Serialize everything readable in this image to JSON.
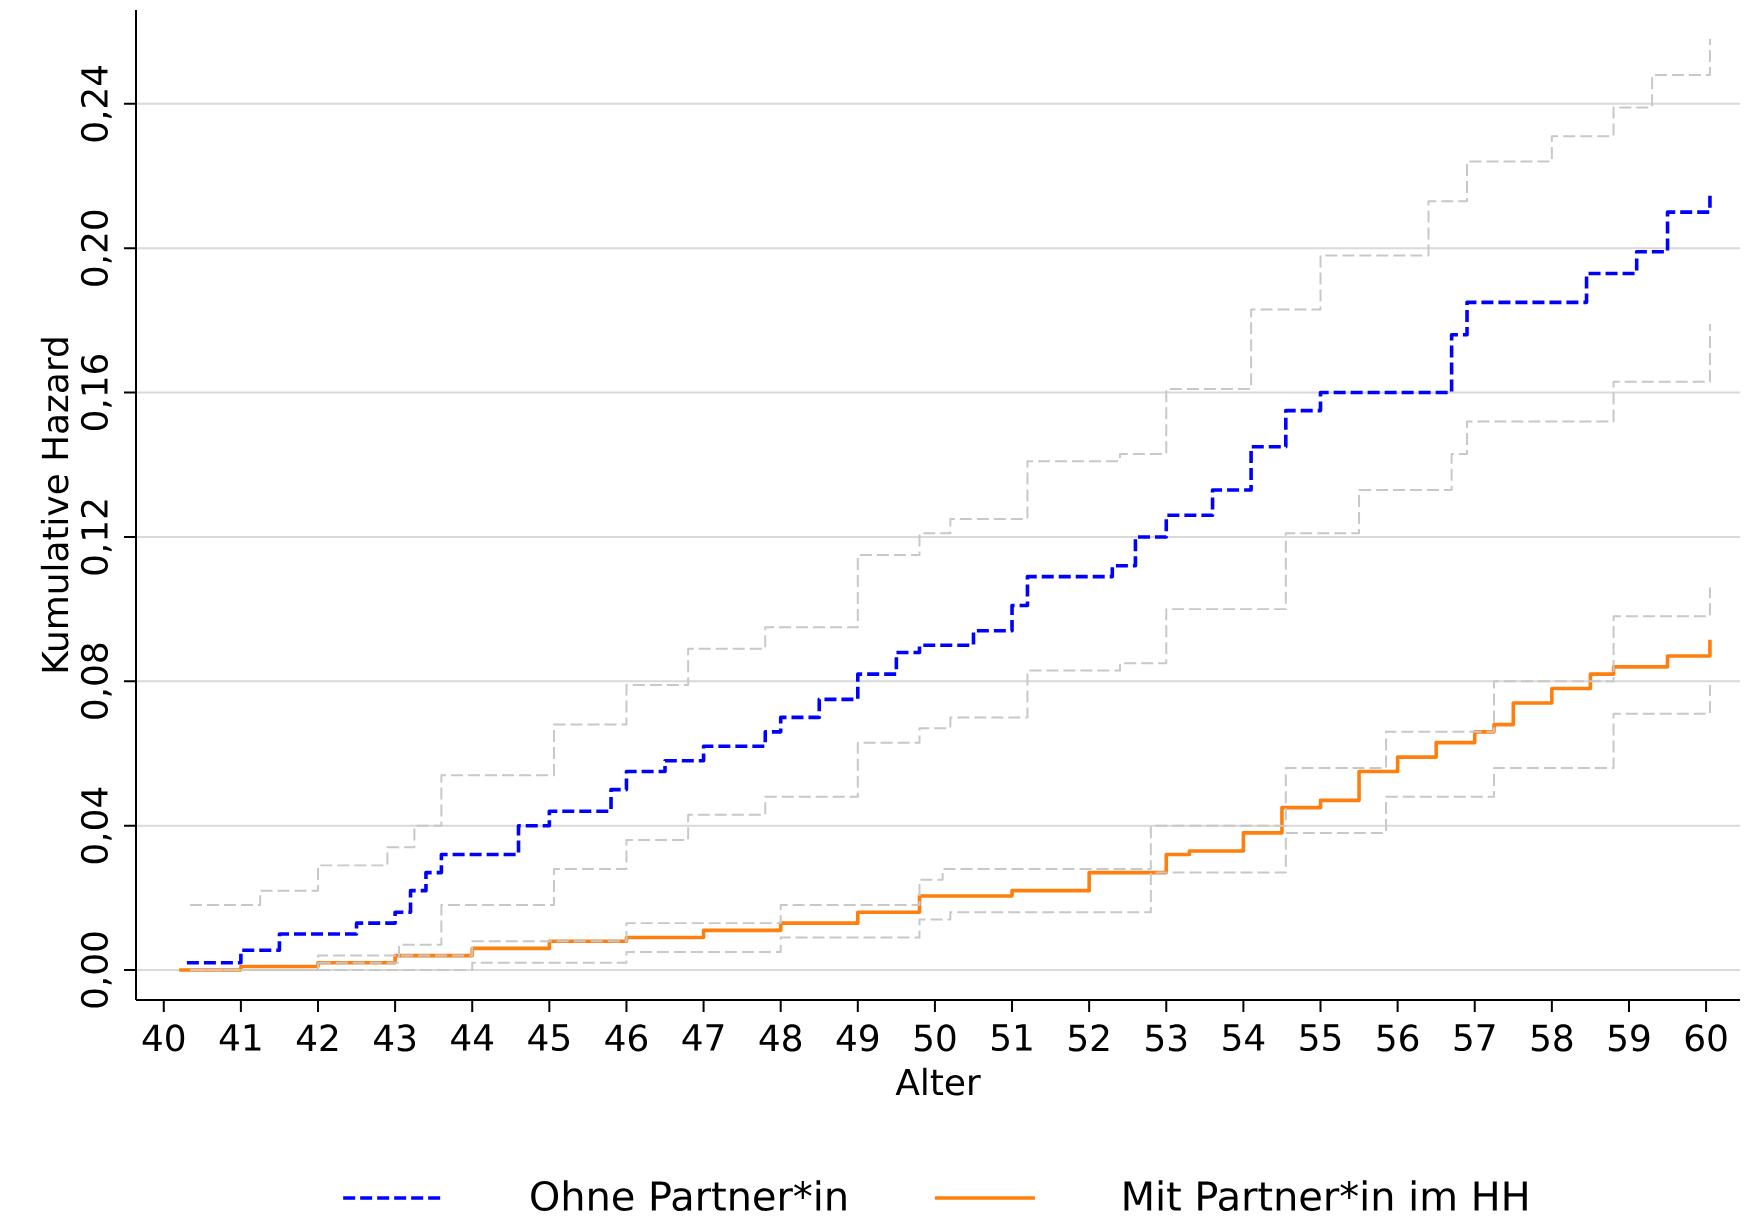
{
  "chart_data": {
    "type": "step",
    "xlabel": "Alter",
    "ylabel": "Kumulative Hazard",
    "xlim": [
      39.64,
      60.44
    ],
    "ylim": [
      -0.0083,
      0.266
    ],
    "xticks": [
      40,
      41,
      42,
      43,
      44,
      45,
      46,
      47,
      48,
      49,
      50,
      51,
      52,
      53,
      54,
      55,
      56,
      57,
      58,
      59,
      60
    ],
    "yticks": [
      {
        "value": 0,
        "label": "0,00"
      },
      {
        "value": 0.04,
        "label": "0,04"
      },
      {
        "value": 0.08,
        "label": "0,08"
      },
      {
        "value": 0.12,
        "label": "0,12"
      },
      {
        "value": 0.16,
        "label": "0,16"
      },
      {
        "value": 0.2,
        "label": "0,20"
      },
      {
        "value": 0.24,
        "label": "0,24"
      }
    ],
    "grid": "y",
    "legend": "bottom",
    "series": [
      {
        "color": "#c8c8c8",
        "line_style": "dashed",
        "x": [
          40.34,
          41.25,
          42.0,
          42.9,
          43.25,
          43.6,
          44.57,
          45.06,
          46.0,
          46.8,
          47.8,
          49.0,
          49.8,
          50.2,
          51.2,
          52.4,
          53.0,
          54.1,
          55.0,
          56.4,
          56.9,
          58.0,
          58.8,
          59.3,
          60.05
        ],
        "values": [
          0.018,
          0.022,
          0.029,
          0.034,
          0.04,
          0.054,
          0.054,
          0.068,
          0.079,
          0.089,
          0.095,
          0.115,
          0.121,
          0.125,
          0.141,
          0.143,
          0.161,
          0.183,
          0.198,
          0.213,
          0.224,
          0.231,
          0.239,
          0.248,
          0.258
        ]
      },
      {
        "color": "#c8c8c8",
        "line_style": "dashed",
        "x": [
          40.34,
          42.0,
          43.05,
          43.6,
          44.6,
          45.06,
          46.0,
          46.8,
          47.8,
          49.0,
          49.8,
          50.2,
          51.2,
          52.4,
          53.0,
          54.55,
          55.5,
          56.7,
          56.9,
          58.8,
          60.05
        ],
        "values": [
          0.0,
          0.002,
          0.007,
          0.018,
          0.018,
          0.028,
          0.036,
          0.043,
          0.048,
          0.063,
          0.067,
          0.07,
          0.083,
          0.085,
          0.1,
          0.121,
          0.133,
          0.143,
          0.152,
          0.163,
          0.179
        ]
      },
      {
        "color": "#c8c8c8",
        "line_style": "dashed",
        "x": [
          40.4,
          42.0,
          44.0,
          46.0,
          48.0,
          49.8,
          50.1,
          52.8,
          54.55,
          55.85,
          57.25,
          58.8,
          60.05
        ],
        "values": [
          0.0,
          0.004,
          0.008,
          0.013,
          0.018,
          0.025,
          0.028,
          0.04,
          0.056,
          0.066,
          0.08,
          0.098,
          0.106
        ]
      },
      {
        "color": "#c8c8c8",
        "line_style": "dashed",
        "x": [
          42.0,
          44.0,
          46.0,
          48.0,
          49.8,
          50.2,
          52.8,
          54.55,
          55.85,
          57.25,
          58.8,
          60.05
        ],
        "values": [
          0.0,
          0.002,
          0.005,
          0.009,
          0.014,
          0.016,
          0.027,
          0.038,
          0.048,
          0.056,
          0.071,
          0.079
        ]
      },
      {
        "name": "Ohne Partner*in",
        "color": "#0000ff",
        "line_style": "dashed",
        "x": [
          40.3,
          41.0,
          41.5,
          42.5,
          43.0,
          43.2,
          43.4,
          43.6,
          44.6,
          45.0,
          45.8,
          46.0,
          46.5,
          47.0,
          47.8,
          48.0,
          48.5,
          49.0,
          49.5,
          49.8,
          50.5,
          51.0,
          51.2,
          52.3,
          52.6,
          53.0,
          53.6,
          54.1,
          54.55,
          55.0,
          56.7,
          56.9,
          58.45,
          59.1,
          59.5,
          60.05
        ],
        "values": [
          0.002,
          0.0055,
          0.01,
          0.013,
          0.016,
          0.022,
          0.027,
          0.032,
          0.04,
          0.044,
          0.05,
          0.055,
          0.058,
          0.062,
          0.066,
          0.07,
          0.075,
          0.082,
          0.088,
          0.09,
          0.094,
          0.101,
          0.109,
          0.112,
          0.12,
          0.126,
          0.133,
          0.145,
          0.155,
          0.16,
          0.176,
          0.185,
          0.193,
          0.199,
          0.21,
          0.2145
        ]
      },
      {
        "name": "Mit Partner*in im HH",
        "color": "#ff7f0e",
        "line_style": "solid",
        "x": [
          40.2,
          41.0,
          42.0,
          43.0,
          44.0,
          45.0,
          46.0,
          47.0,
          48.0,
          49.0,
          49.8,
          51.0,
          52.0,
          53.0,
          53.3,
          54.0,
          54.5,
          55.0,
          55.5,
          56.0,
          56.5,
          57.0,
          57.25,
          57.5,
          58.0,
          58.5,
          58.8,
          59.5,
          60.05
        ],
        "values": [
          0.0,
          0.001,
          0.002,
          0.004,
          0.006,
          0.008,
          0.009,
          0.011,
          0.013,
          0.016,
          0.0205,
          0.022,
          0.027,
          0.032,
          0.033,
          0.038,
          0.045,
          0.047,
          0.055,
          0.059,
          0.063,
          0.066,
          0.068,
          0.074,
          0.078,
          0.082,
          0.084,
          0.087,
          0.0915
        ]
      }
    ]
  }
}
